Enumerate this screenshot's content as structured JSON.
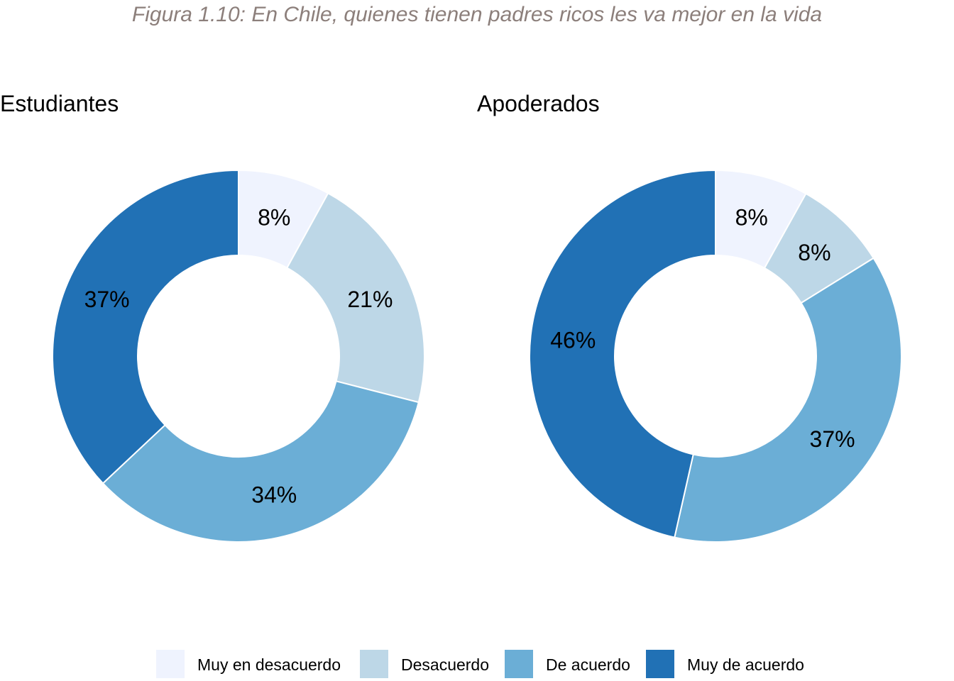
{
  "title": "Figura 1.10: En Chile, quienes tienen padres ricos les va mejor en la vida",
  "colors": {
    "title": "#8c7f7b",
    "text": "#000000",
    "background": "#ffffff"
  },
  "chart_data": [
    {
      "type": "pie",
      "variant": "donut",
      "title": "Estudiantes",
      "categories": [
        "Muy en desacuerdo",
        "Desacuerdo",
        "De acuerdo",
        "Muy de acuerdo"
      ],
      "values": [
        8,
        21,
        34,
        37
      ],
      "labels": [
        "8%",
        "21%",
        "34%",
        "37%"
      ],
      "colors": [
        "#eff3fe",
        "#bdd7e7",
        "#6baed6",
        "#2171b5"
      ]
    },
    {
      "type": "pie",
      "variant": "donut",
      "title": "Apoderados",
      "categories": [
        "Muy en desacuerdo",
        "Desacuerdo",
        "De acuerdo",
        "Muy de acuerdo"
      ],
      "values": [
        8,
        8,
        37,
        46
      ],
      "labels": [
        "8%",
        "8%",
        "37%",
        "46%"
      ],
      "colors": [
        "#eff3fe",
        "#bdd7e7",
        "#6baed6",
        "#2171b5"
      ]
    }
  ],
  "legend": {
    "position": "bottom",
    "items": [
      {
        "label": "Muy en desacuerdo",
        "color": "#eff3fe"
      },
      {
        "label": "Desacuerdo",
        "color": "#bdd7e7"
      },
      {
        "label": "De acuerdo",
        "color": "#6baed6"
      },
      {
        "label": "Muy de acuerdo",
        "color": "#2171b5"
      }
    ]
  }
}
